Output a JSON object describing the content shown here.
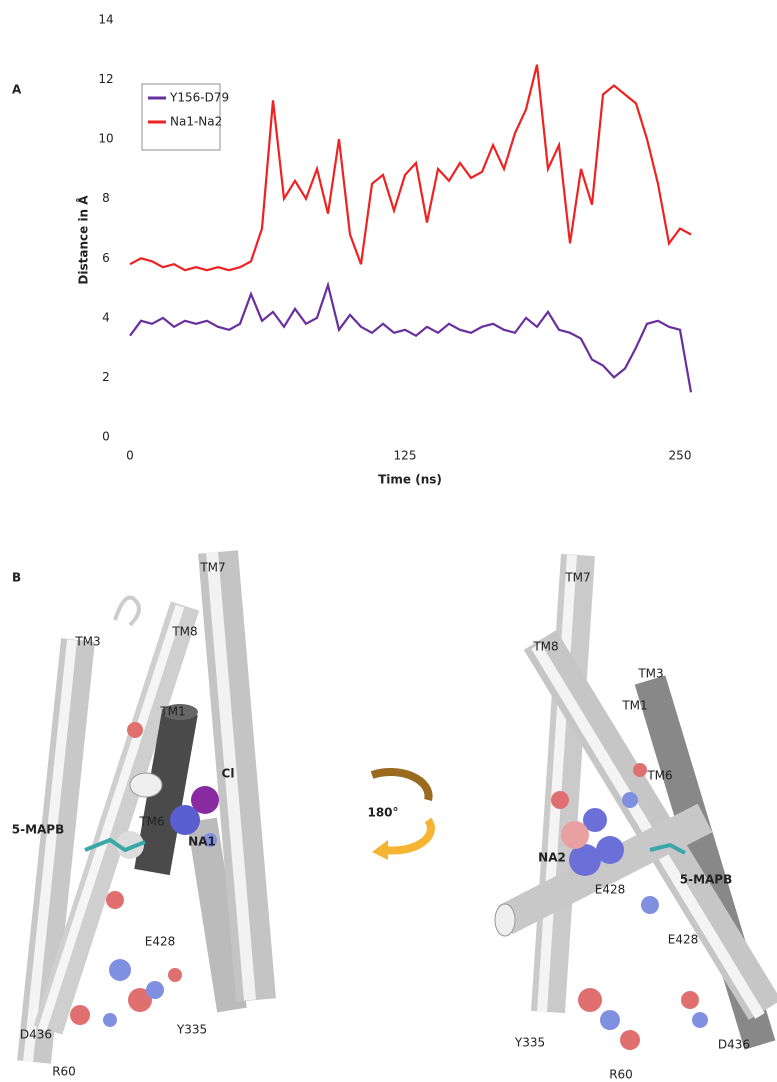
{
  "chart_data": {
    "type": "line",
    "panel_label": "A",
    "y_label": "Distance in Å",
    "x_label": "Time (ns)",
    "x": [
      0,
      5,
      10,
      15,
      20,
      25,
      30,
      35,
      40,
      45,
      50,
      55,
      60,
      65,
      70,
      75,
      80,
      85,
      90,
      95,
      100,
      105,
      110,
      115,
      120,
      125,
      130,
      135,
      140,
      145,
      150,
      155,
      160,
      165,
      170,
      175,
      180,
      185,
      190,
      195,
      200,
      205,
      210,
      215,
      220,
      225,
      230,
      235,
      240,
      245,
      250,
      255
    ],
    "series": [
      {
        "name": "Y156-D79",
        "color": "#6a2f9e",
        "values": [
          3.4,
          3.9,
          3.8,
          4.0,
          3.7,
          3.9,
          3.8,
          3.9,
          3.7,
          3.6,
          3.8,
          4.8,
          3.9,
          4.2,
          3.7,
          4.3,
          3.8,
          4.0,
          5.1,
          3.6,
          4.1,
          3.7,
          3.5,
          3.8,
          3.5,
          3.6,
          3.4,
          3.7,
          3.5,
          3.8,
          3.6,
          3.5,
          3.7,
          3.8,
          3.6,
          3.5,
          4.0,
          3.7,
          4.2,
          3.6,
          3.5,
          3.3,
          2.6,
          2.4,
          2.0,
          2.3,
          3.0,
          3.8,
          3.9,
          3.7,
          3.6,
          1.5
        ]
      },
      {
        "name": "Na1-Na2",
        "color": "#ee2222",
        "values": [
          5.8,
          6.0,
          5.9,
          5.7,
          5.8,
          5.6,
          5.7,
          5.6,
          5.7,
          5.6,
          5.7,
          5.9,
          7.0,
          11.3,
          8.0,
          8.6,
          8.0,
          9.0,
          7.5,
          10.0,
          6.8,
          5.8,
          8.5,
          8.8,
          7.6,
          8.8,
          9.2,
          7.2,
          9.0,
          8.6,
          9.2,
          8.7,
          8.9,
          9.8,
          9.0,
          10.2,
          11.0,
          12.5,
          9.0,
          9.8,
          6.5,
          9.0,
          7.8,
          11.5,
          11.8,
          11.5,
          11.2,
          10.0,
          8.5,
          6.5,
          7.0,
          6.8
        ]
      }
    ],
    "xlim": [
      0,
      260
    ],
    "xticks": [
      0,
      125,
      250
    ],
    "ylim": [
      0,
      14
    ],
    "yticks": [
      0,
      2,
      4,
      6,
      8,
      10,
      12,
      14
    ],
    "grid": false,
    "legend": "upper left"
  },
  "panel_b": {
    "panel_label": "B",
    "left_labels": [
      "TM3",
      "TM8",
      "TM7",
      "TM1",
      "Cl",
      "TM6",
      "NA1",
      "5-MAPB",
      "E428",
      "D436",
      "Y335",
      "R60"
    ],
    "rotation": "180°",
    "right_labels": [
      "TM7",
      "TM8",
      "TM3",
      "TM1",
      "TM6",
      "NA2",
      "E428",
      "5-MAPB",
      "E428",
      "Y335",
      "D436",
      "R60"
    ]
  }
}
